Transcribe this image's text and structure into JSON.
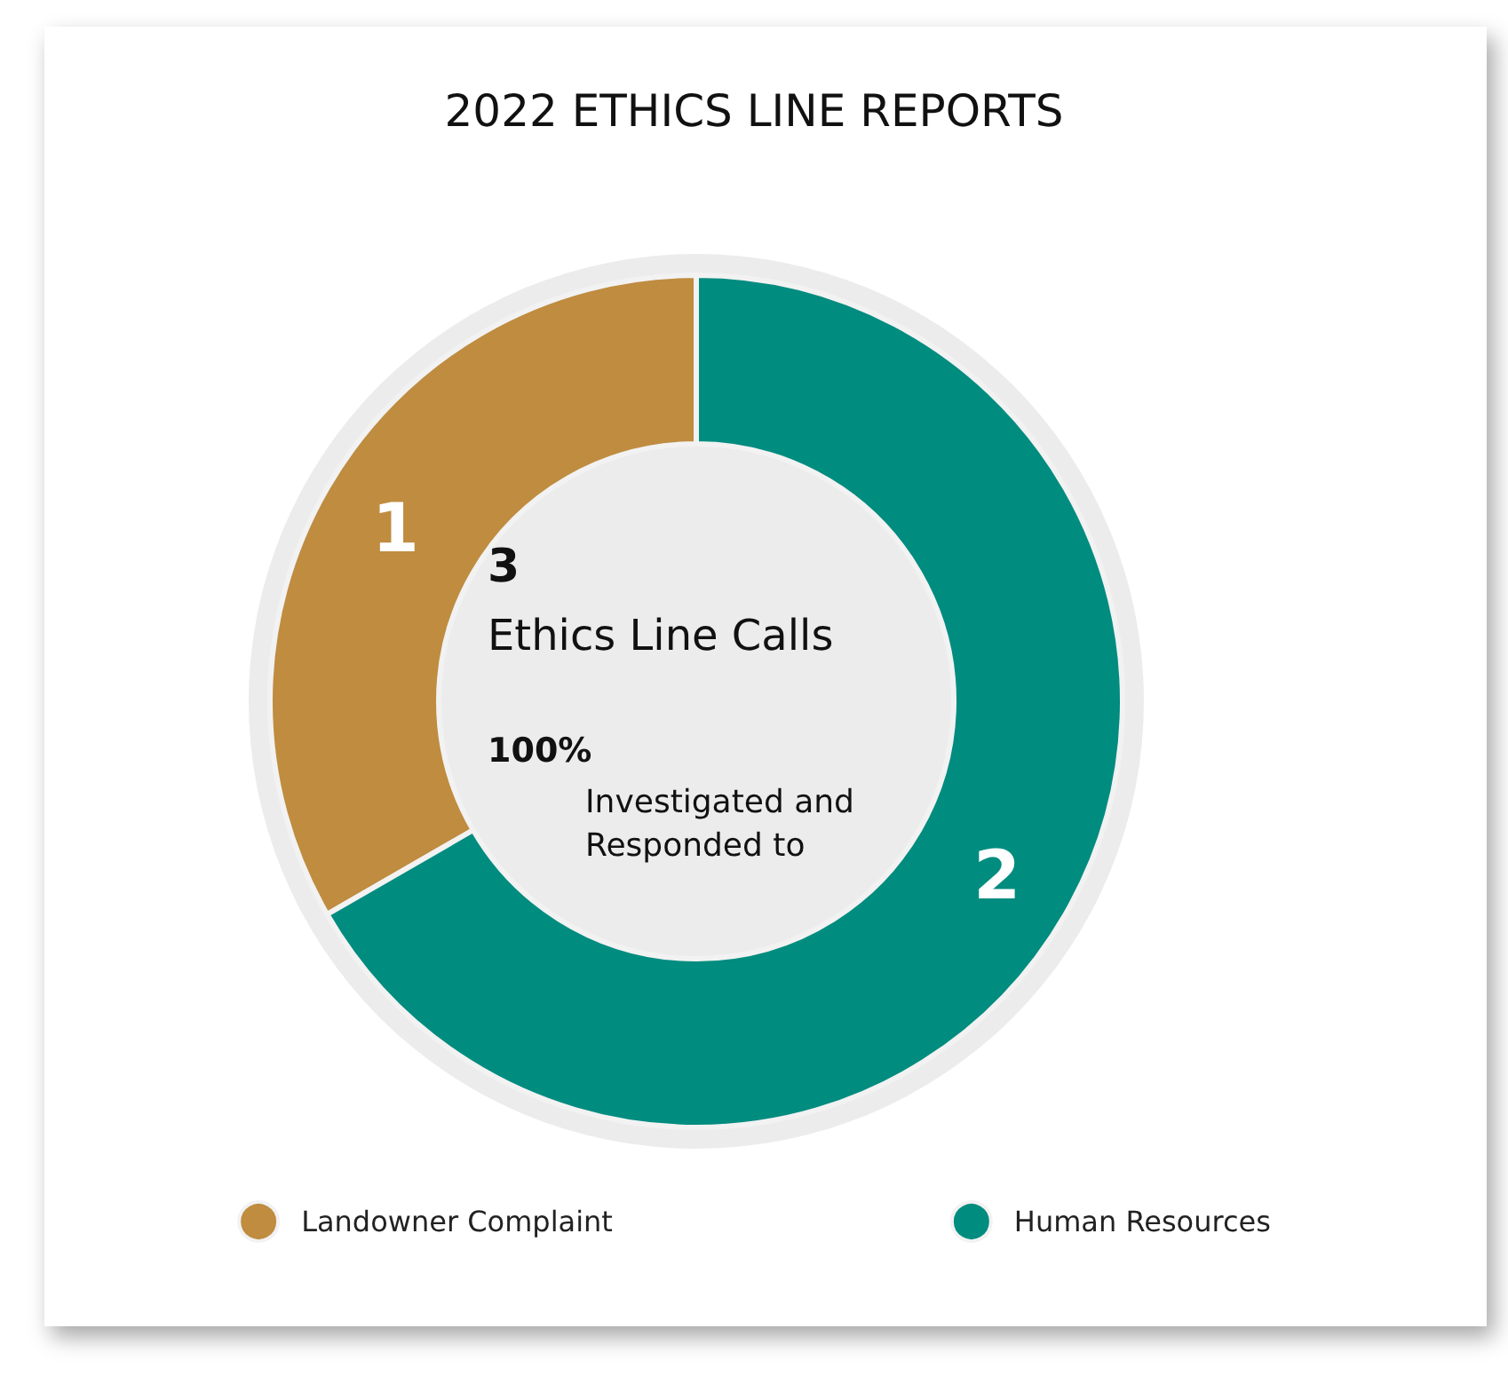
{
  "chart_data": {
    "type": "donut",
    "title": "2022 ETHICS LINE REPORTS",
    "categories": [
      "Landowner Complaint",
      "Human Resources"
    ],
    "values": [
      1,
      2
    ],
    "colors": [
      "#bf8c40",
      "#008c7f"
    ],
    "data_labels": true,
    "legend": "bottom",
    "annotations": [
      "3",
      "Ethics Line Calls",
      "100%",
      "Investigated and Responded to"
    ]
  }
}
